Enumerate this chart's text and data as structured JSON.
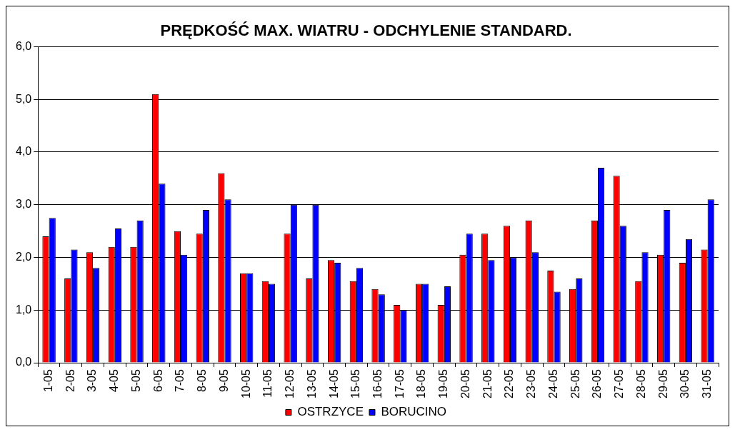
{
  "chart_data": {
    "type": "bar",
    "title": "PRĘDKOŚĆ MAX. WIATRU - ODCHYLENIE STANDARD.",
    "categories": [
      "1-05",
      "2-05",
      "3-05",
      "4-05",
      "5-05",
      "6-05",
      "7-05",
      "8-05",
      "9-05",
      "10-05",
      "11-05",
      "12-05",
      "13-05",
      "14-05",
      "15-05",
      "16-05",
      "17-05",
      "18-05",
      "19-05",
      "20-05",
      "21-05",
      "22-05",
      "23-05",
      "24-05",
      "25-05",
      "26-05",
      "27-05",
      "28-05",
      "29-05",
      "30-05",
      "31-05"
    ],
    "series": [
      {
        "name": "OSTRZYCE",
        "color": "#ff0000",
        "values": [
          2.4,
          1.6,
          2.1,
          2.2,
          2.2,
          5.1,
          2.5,
          2.45,
          3.6,
          1.7,
          1.55,
          2.45,
          1.6,
          1.95,
          1.55,
          1.4,
          1.1,
          1.5,
          1.1,
          2.05,
          2.45,
          2.6,
          2.7,
          1.75,
          1.4,
          2.7,
          3.55,
          1.55,
          2.05,
          1.9,
          2.15
        ]
      },
      {
        "name": "BORUCINO",
        "color": "#0000ff",
        "values": [
          2.75,
          2.15,
          1.8,
          2.55,
          2.7,
          3.4,
          2.05,
          2.9,
          3.1,
          1.7,
          1.5,
          3.0,
          3.0,
          1.9,
          1.8,
          1.3,
          1.0,
          1.5,
          1.45,
          2.45,
          1.95,
          2.0,
          2.1,
          1.35,
          1.6,
          3.7,
          2.6,
          2.1,
          2.9,
          2.35,
          3.1
        ]
      }
    ],
    "ylim": [
      0,
      6
    ],
    "yticks": [
      {
        "value": 0,
        "label": "0,0"
      },
      {
        "value": 1,
        "label": "1,0"
      },
      {
        "value": 2,
        "label": "2,0"
      },
      {
        "value": 3,
        "label": "3,0"
      },
      {
        "value": 4,
        "label": "4,0"
      },
      {
        "value": 5,
        "label": "5,0"
      },
      {
        "value": 6,
        "label": "6,0"
      }
    ],
    "grid": "y",
    "legend": "bottom"
  }
}
